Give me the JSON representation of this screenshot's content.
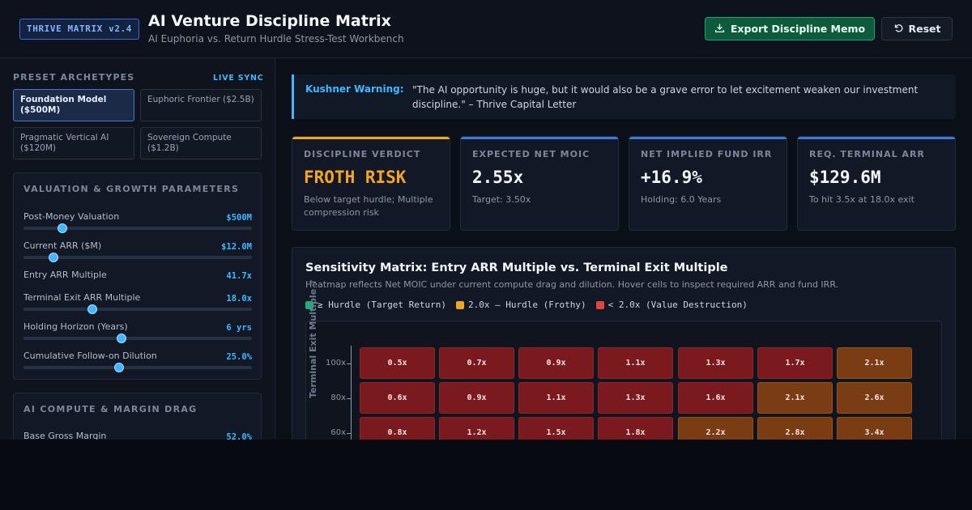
{
  "header": {
    "badge": "THRIVE MATRIX v2.4",
    "title": "AI Venture Discipline Matrix",
    "subtitle": "AI Euphoria vs. Return Hurdle Stress-Test Workbench",
    "export_label": "Export Discipline Memo",
    "reset_label": "Reset"
  },
  "sidebar": {
    "presets_label": "PRESET ARCHETYPES",
    "live_sync": "LIVE SYNC",
    "presets": [
      {
        "label": "Foundation Model ($500M)",
        "active": true
      },
      {
        "label": "Euphoric Frontier ($2.5B)",
        "active": false
      },
      {
        "label": "Pragmatic Vertical AI ($120M)",
        "active": false
      },
      {
        "label": "Sovereign Compute ($1.2B)",
        "active": false
      }
    ],
    "valuation_panel": {
      "title": "VALUATION & GROWTH PARAMETERS",
      "params": [
        {
          "label": "Post-Money Valuation",
          "value": "$500M",
          "slider": 0.17
        },
        {
          "label": "Current ARR ($M)",
          "value": "$12.0M",
          "slider": 0.13
        },
        {
          "label": "Entry ARR Multiple",
          "value": "41.7x",
          "slider": null
        },
        {
          "label": "Terminal Exit ARR Multiple",
          "value": "18.0x",
          "slider": 0.3
        },
        {
          "label": "Holding Horizon (Years)",
          "value": "6 yrs",
          "slider": 0.43
        },
        {
          "label": "Cumulative Follow-on Dilution",
          "value": "25.0%",
          "slider": 0.42
        }
      ]
    },
    "compute_panel": {
      "title": "AI COMPUTE & MARGIN DRAG",
      "params": [
        {
          "label": "Base Gross Margin",
          "value": "52.0%"
        }
      ]
    }
  },
  "warning": {
    "label": "Kushner Warning:",
    "text": "\"The AI opportunity is huge, but it would also be a grave error to let excitement weaken our investment discipline.\" – Thrive Capital Letter"
  },
  "kpis": [
    {
      "label": "DISCIPLINE VERDICT",
      "value": "FROTH RISK",
      "sub": "Below target hurdle; Multiple compression risk",
      "accent": "#f5a524",
      "value_color": "#f5a524"
    },
    {
      "label": "EXPECTED NET MOIC",
      "value": "2.55x",
      "sub": "Target: 3.50x",
      "accent": "#3b7ae0",
      "value_color": "#f2f5f9"
    },
    {
      "label": "NET IMPLIED FUND IRR",
      "value": "+16.9%",
      "sub": "Holding: 6.0 Years",
      "accent": "#3b7ae0",
      "value_color": "#f2f5f9"
    },
    {
      "label": "REQ. TERMINAL ARR",
      "value": "$129.6M",
      "sub": "To hit 3.5x at 18.0x exit",
      "accent": "#3b7ae0",
      "value_color": "#f2f5f9"
    }
  ],
  "matrix": {
    "title": "Sensitivity Matrix: Entry ARR Multiple vs. Terminal Exit Multiple",
    "subtitle": "Heatmap reflects Net MOIC under current compute drag and dilution. Hover cells to inspect required ARR and fund IRR.",
    "legend": [
      {
        "label": "≥ Hurdle (Target Return)",
        "color": "#19b27b"
      },
      {
        "label": "2.0x – Hurdle (Frothy)",
        "color": "#f5a524"
      },
      {
        "label": "< 2.0x (Value Destruction)",
        "color": "#e0453f"
      }
    ],
    "y_axis_title": "Terminal Exit Multiple ↑",
    "y_ticks": [
      "100x",
      "80x",
      "60x"
    ],
    "colors": {
      "destruction": "#7a1a1e",
      "frothy": "#7a3c13"
    },
    "rows": [
      [
        "0.5x",
        "0.7x",
        "0.9x",
        "1.1x",
        "1.3x",
        "1.7x",
        "2.1x"
      ],
      [
        "0.6x",
        "0.9x",
        "1.1x",
        "1.3x",
        "1.6x",
        "2.1x",
        "2.6x"
      ],
      [
        "0.8x",
        "1.2x",
        "1.5x",
        "1.8x",
        "2.2x",
        "2.8x",
        "3.4x"
      ]
    ]
  }
}
